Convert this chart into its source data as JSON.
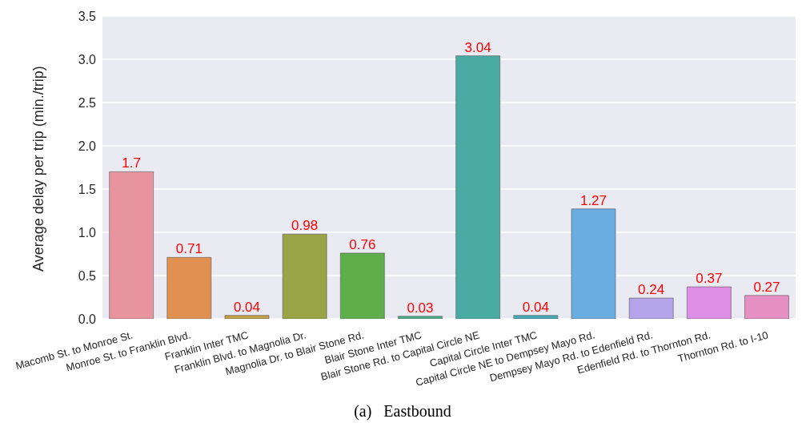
{
  "chart_data": {
    "type": "bar",
    "ylabel": "Average delay per trip (min./trip)",
    "categories": [
      "Macomb St. to Monroe St.",
      "Monroe St. to Franklin Blvd.",
      "Franklin Inter TMC",
      "Franklin Blvd. to Magnolia Dr.",
      "Magnolia Dr. to Blair Stone Rd.",
      "Blair Stone Inter TMC",
      "Blair Stone Rd. to Capital Circle NE",
      "Capital Circle Inter TMC",
      "Capital Circle NE to Dempsey Mayo Rd.",
      "Dempsey Mayo Rd. to Edenfield Rd.",
      "Edenfield Rd. to Thornton Rd.",
      "Thornton Rd. to I-10"
    ],
    "values": [
      1.7,
      0.71,
      0.04,
      0.98,
      0.76,
      0.03,
      3.04,
      0.04,
      1.27,
      0.24,
      0.37,
      0.27
    ],
    "colors": [
      "#e8949f",
      "#e09152",
      "#c2a048",
      "#99a446",
      "#5eaf4c",
      "#4caf8a",
      "#4aaaa4",
      "#4aa9b6",
      "#6aade0",
      "#b4a5ea",
      "#df8ee6",
      "#e68fc3"
    ],
    "ylim": [
      0,
      3.5
    ],
    "yticks": [
      {
        "value": 0,
        "label": "0.0"
      },
      {
        "value": 0.5,
        "label": "0.5"
      },
      {
        "value": 1,
        "label": "1.0"
      },
      {
        "value": 1.5,
        "label": "1.5"
      },
      {
        "value": 2,
        "label": "2.0"
      },
      {
        "value": 2.5,
        "label": "2.5"
      },
      {
        "value": 3,
        "label": "3.0"
      },
      {
        "value": 3.5,
        "label": "3.5"
      }
    ],
    "grid": "y",
    "data_labels": true,
    "annotations": [
      "(a)   Eastbound"
    ]
  }
}
